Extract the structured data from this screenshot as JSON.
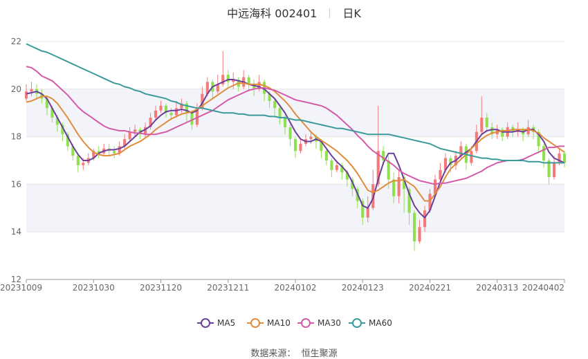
{
  "title": {
    "name": "中远海科 002401",
    "period": "日K"
  },
  "source": {
    "label": "数据来源：",
    "value": "恒生聚源"
  },
  "colors": {
    "up": "#f47a7a",
    "down": "#8fe04f",
    "band": "#f2f4fa",
    "grid": "#e6e6e6",
    "MA5": "#6a3d9a",
    "MA10": "#e08c3a",
    "MA30": "#d45aa8",
    "MA60": "#3a9a9a"
  },
  "chart_data": {
    "type": "candlestick",
    "ylim": [
      12,
      22
    ],
    "y_ticks": [
      12,
      14,
      16,
      18,
      20,
      22
    ],
    "x_tick_labels": [
      "20231009",
      "20231030",
      "20231120",
      "20231211",
      "20240102",
      "20240123",
      "20240221",
      "20240313",
      "20240402"
    ],
    "legend": [
      "MA5",
      "MA10",
      "MA30",
      "MA60"
    ],
    "legend_position": "bottom",
    "grid": true,
    "candles": [
      [
        19.6,
        19.9,
        20.2,
        19.5
      ],
      [
        19.9,
        20.0,
        20.3,
        19.7
      ],
      [
        20.0,
        19.8,
        20.2,
        19.6
      ],
      [
        19.8,
        19.6,
        20.0,
        19.4
      ],
      [
        19.6,
        19.2,
        19.7,
        18.9
      ],
      [
        19.2,
        18.8,
        19.3,
        18.6
      ],
      [
        18.8,
        18.5,
        18.9,
        18.2
      ],
      [
        18.5,
        18.1,
        18.6,
        17.8
      ],
      [
        18.1,
        17.6,
        18.2,
        17.4
      ],
      [
        17.6,
        17.2,
        17.7,
        17.0
      ],
      [
        17.2,
        16.8,
        17.3,
        16.5
      ],
      [
        16.8,
        16.9,
        17.1,
        16.6
      ],
      [
        16.9,
        17.1,
        17.3,
        16.8
      ],
      [
        17.1,
        17.4,
        17.5,
        17.0
      ],
      [
        17.4,
        17.3,
        17.6,
        17.1
      ],
      [
        17.3,
        17.5,
        17.7,
        17.2
      ],
      [
        17.5,
        17.4,
        17.7,
        17.2
      ],
      [
        17.4,
        17.3,
        17.6,
        17.1
      ],
      [
        17.3,
        17.6,
        17.8,
        17.2
      ],
      [
        17.6,
        17.9,
        18.1,
        17.5
      ],
      [
        17.9,
        18.2,
        18.4,
        17.8
      ],
      [
        18.2,
        18.3,
        18.5,
        18.0
      ],
      [
        18.3,
        18.1,
        18.4,
        17.9
      ],
      [
        18.1,
        18.4,
        18.6,
        18.0
      ],
      [
        18.4,
        18.8,
        19.0,
        18.3
      ],
      [
        18.8,
        19.1,
        19.3,
        18.7
      ],
      [
        19.1,
        19.3,
        19.5,
        19.0
      ],
      [
        19.3,
        19.0,
        19.4,
        18.8
      ],
      [
        19.0,
        18.9,
        19.2,
        18.7
      ],
      [
        18.9,
        19.2,
        19.5,
        18.8
      ],
      [
        19.2,
        19.4,
        19.6,
        19.0
      ],
      [
        19.4,
        19.0,
        19.5,
        18.6
      ],
      [
        19.0,
        18.5,
        19.1,
        18.3
      ],
      [
        18.5,
        19.2,
        19.4,
        18.4
      ],
      [
        19.2,
        19.8,
        20.1,
        19.1
      ],
      [
        19.8,
        20.3,
        20.5,
        19.7
      ],
      [
        20.3,
        19.9,
        20.4,
        19.6
      ],
      [
        19.9,
        20.2,
        20.6,
        19.8
      ],
      [
        20.2,
        20.6,
        21.6,
        20.1
      ],
      [
        20.6,
        20.3,
        20.8,
        20.1
      ],
      [
        20.3,
        20.4,
        20.7,
        20.0
      ],
      [
        20.4,
        20.1,
        20.5,
        19.9
      ],
      [
        20.1,
        20.5,
        20.8,
        20.0
      ],
      [
        20.5,
        20.2,
        20.6,
        19.9
      ],
      [
        20.2,
        20.0,
        20.4,
        19.7
      ],
      [
        20.0,
        20.3,
        20.6,
        19.9
      ],
      [
        20.3,
        19.8,
        20.4,
        19.5
      ],
      [
        19.8,
        19.5,
        19.9,
        19.2
      ],
      [
        19.5,
        19.2,
        19.6,
        18.9
      ],
      [
        19.2,
        18.8,
        19.3,
        18.5
      ],
      [
        18.8,
        18.4,
        18.9,
        18.1
      ],
      [
        18.4,
        17.9,
        18.5,
        17.6
      ],
      [
        17.9,
        17.4,
        18.0,
        17.1
      ],
      [
        17.4,
        17.7,
        17.9,
        17.3
      ],
      [
        17.7,
        17.9,
        18.1,
        17.6
      ],
      [
        17.9,
        18.0,
        18.2,
        17.7
      ],
      [
        18.0,
        17.8,
        18.1,
        17.5
      ],
      [
        17.8,
        17.4,
        17.9,
        17.1
      ],
      [
        17.4,
        17.0,
        17.5,
        16.8
      ],
      [
        17.0,
        16.6,
        17.1,
        16.3
      ],
      [
        16.6,
        16.8,
        17.0,
        16.5
      ],
      [
        16.8,
        16.5,
        16.9,
        16.2
      ],
      [
        16.5,
        16.2,
        16.6,
        15.9
      ],
      [
        16.2,
        15.8,
        16.3,
        15.5
      ],
      [
        15.8,
        15.3,
        15.9,
        15.0
      ],
      [
        15.3,
        14.6,
        15.4,
        14.3
      ],
      [
        14.6,
        15.0,
        15.5,
        14.4
      ],
      [
        15.0,
        16.0,
        16.6,
        14.9
      ],
      [
        16.0,
        17.4,
        19.3,
        15.9
      ],
      [
        17.4,
        17.0,
        17.6,
        16.8
      ],
      [
        17.0,
        16.2,
        17.2,
        15.8
      ],
      [
        16.2,
        15.5,
        16.5,
        15.2
      ],
      [
        15.5,
        16.3,
        16.6,
        15.2
      ],
      [
        16.3,
        15.8,
        16.4,
        14.8
      ],
      [
        15.8,
        14.8,
        15.9,
        14.3
      ],
      [
        14.8,
        13.6,
        14.9,
        13.2
      ],
      [
        13.6,
        14.2,
        14.5,
        13.5
      ],
      [
        14.2,
        14.9,
        15.1,
        14.0
      ],
      [
        14.9,
        15.6,
        15.8,
        14.8
      ],
      [
        15.6,
        16.2,
        16.4,
        15.5
      ],
      [
        16.2,
        16.6,
        16.9,
        16.1
      ],
      [
        16.6,
        17.1,
        17.3,
        16.5
      ],
      [
        17.1,
        16.8,
        17.2,
        16.5
      ],
      [
        16.8,
        17.2,
        17.4,
        16.6
      ],
      [
        17.2,
        17.6,
        17.8,
        17.1
      ],
      [
        17.6,
        16.9,
        17.7,
        16.6
      ],
      [
        16.9,
        17.4,
        17.6,
        16.8
      ],
      [
        17.4,
        18.2,
        18.5,
        17.3
      ],
      [
        18.2,
        18.8,
        19.7,
        18.1
      ],
      [
        18.8,
        18.4,
        19.0,
        18.2
      ],
      [
        18.4,
        18.1,
        18.6,
        17.9
      ],
      [
        18.1,
        18.3,
        18.5,
        17.9
      ],
      [
        18.3,
        18.0,
        18.4,
        17.8
      ],
      [
        18.0,
        18.4,
        18.6,
        17.9
      ],
      [
        18.4,
        18.2,
        18.5,
        18.0
      ],
      [
        18.2,
        18.3,
        18.6,
        18.0
      ],
      [
        18.3,
        18.1,
        18.4,
        17.8
      ],
      [
        18.1,
        18.4,
        18.7,
        18.0
      ],
      [
        18.4,
        18.2,
        18.5,
        17.9
      ],
      [
        18.2,
        17.6,
        18.3,
        17.3
      ],
      [
        17.6,
        17.0,
        17.7,
        16.7
      ],
      [
        17.0,
        16.3,
        17.1,
        16.0
      ],
      [
        16.3,
        16.9,
        17.2,
        16.2
      ],
      [
        16.9,
        17.3,
        17.5,
        16.8
      ],
      [
        17.3,
        16.9,
        17.4,
        16.7
      ]
    ],
    "series": [
      {
        "name": "MA5",
        "values": [
          19.8,
          19.85,
          19.9,
          19.8,
          19.6,
          19.2,
          18.8,
          18.4,
          18.0,
          17.6,
          17.25,
          17.0,
          17.0,
          17.1,
          17.3,
          17.4,
          17.45,
          17.45,
          17.5,
          17.6,
          17.8,
          18.0,
          18.2,
          18.3,
          18.45,
          18.7,
          18.9,
          19.05,
          19.1,
          19.1,
          19.15,
          19.1,
          19.0,
          19.1,
          19.4,
          19.8,
          20.1,
          20.2,
          20.3,
          20.4,
          20.4,
          20.35,
          20.3,
          20.2,
          20.15,
          20.1,
          20.0,
          19.8,
          19.6,
          19.3,
          19.0,
          18.6,
          18.2,
          17.9,
          17.8,
          17.8,
          17.9,
          17.8,
          17.5,
          17.2,
          16.95,
          16.75,
          16.5,
          16.1,
          15.6,
          15.1,
          15.0,
          15.4,
          16.2,
          16.9,
          17.3,
          17.3,
          16.8,
          16.2,
          15.6,
          15.1,
          14.8,
          14.6,
          14.9,
          15.5,
          16.1,
          16.6,
          16.9,
          17.0,
          17.2,
          17.35,
          17.5,
          17.8,
          18.1,
          18.25,
          18.3,
          18.3,
          18.2,
          18.2,
          18.2,
          18.25,
          18.2,
          18.3,
          18.3,
          18.1,
          17.8,
          17.35,
          17.1,
          17.0,
          16.9
        ]
      },
      {
        "name": "MA10",
        "values": [
          19.45,
          19.5,
          19.6,
          19.7,
          19.7,
          19.6,
          19.4,
          19.1,
          18.8,
          18.45,
          18.1,
          17.8,
          17.55,
          17.35,
          17.25,
          17.2,
          17.2,
          17.25,
          17.3,
          17.45,
          17.6,
          17.7,
          17.8,
          17.95,
          18.1,
          18.3,
          18.45,
          18.6,
          18.75,
          18.85,
          18.95,
          19.0,
          19.05,
          19.15,
          19.3,
          19.45,
          19.6,
          19.75,
          19.9,
          20.05,
          20.15,
          20.25,
          20.25,
          20.2,
          20.2,
          20.2,
          20.15,
          20.05,
          19.9,
          19.7,
          19.5,
          19.25,
          18.95,
          18.7,
          18.45,
          18.2,
          18.0,
          17.85,
          17.7,
          17.55,
          17.4,
          17.2,
          17.0,
          16.75,
          16.45,
          16.1,
          15.75,
          15.65,
          15.75,
          15.9,
          16.05,
          16.15,
          16.15,
          16.2,
          16.05,
          15.9,
          15.6,
          15.3,
          15.3,
          15.6,
          15.9,
          16.3,
          16.65,
          16.85,
          17.05,
          17.25,
          17.5,
          17.7,
          17.9,
          18.05,
          18.15,
          18.2,
          18.25,
          18.25,
          18.3,
          18.3,
          18.3,
          18.3,
          18.25,
          18.15,
          17.95,
          17.8,
          17.65,
          17.5,
          17.35
        ]
      },
      {
        "name": "MA30",
        "values": [
          20.95,
          20.9,
          20.75,
          20.55,
          20.45,
          20.35,
          20.15,
          19.95,
          19.75,
          19.5,
          19.25,
          19.05,
          18.9,
          18.75,
          18.6,
          18.45,
          18.35,
          18.3,
          18.25,
          18.25,
          18.2,
          18.15,
          18.15,
          18.1,
          18.1,
          18.1,
          18.15,
          18.2,
          18.3,
          18.4,
          18.5,
          18.6,
          18.7,
          18.8,
          18.9,
          19.0,
          19.1,
          19.25,
          19.4,
          19.55,
          19.65,
          19.75,
          19.85,
          19.95,
          20.0,
          20.05,
          20.05,
          20.0,
          19.95,
          19.85,
          19.75,
          19.65,
          19.55,
          19.5,
          19.45,
          19.4,
          19.35,
          19.3,
          19.2,
          19.05,
          18.9,
          18.7,
          18.5,
          18.3,
          18.05,
          17.85,
          17.6,
          17.4,
          17.25,
          17.1,
          16.95,
          16.8,
          16.6,
          16.45,
          16.35,
          16.25,
          16.15,
          16.1,
          16.05,
          16.0,
          16.05,
          16.05,
          16.1,
          16.15,
          16.2,
          16.25,
          16.35,
          16.45,
          16.55,
          16.7,
          16.8,
          16.9,
          16.95,
          17.0,
          17.0,
          17.0,
          17.05,
          17.15,
          17.25,
          17.35,
          17.45,
          17.55,
          17.55,
          17.6,
          17.6
        ]
      },
      {
        "name": "MA60",
        "values": [
          21.9,
          21.8,
          21.7,
          21.6,
          21.55,
          21.45,
          21.35,
          21.25,
          21.15,
          21.05,
          20.95,
          20.85,
          20.75,
          20.65,
          20.55,
          20.45,
          20.35,
          20.25,
          20.2,
          20.1,
          20.05,
          19.95,
          19.9,
          19.8,
          19.75,
          19.7,
          19.65,
          19.6,
          19.5,
          19.45,
          19.35,
          19.3,
          19.25,
          19.2,
          19.2,
          19.15,
          19.1,
          19.05,
          19.0,
          19.0,
          19.0,
          18.95,
          18.95,
          18.9,
          18.9,
          18.9,
          18.9,
          18.85,
          18.85,
          18.8,
          18.8,
          18.75,
          18.7,
          18.7,
          18.65,
          18.6,
          18.55,
          18.5,
          18.45,
          18.4,
          18.35,
          18.35,
          18.3,
          18.25,
          18.2,
          18.15,
          18.1,
          18.1,
          18.1,
          18.1,
          18.1,
          18.05,
          18.0,
          17.95,
          17.9,
          17.85,
          17.8,
          17.75,
          17.7,
          17.6,
          17.5,
          17.45,
          17.4,
          17.35,
          17.3,
          17.25,
          17.2,
          17.15,
          17.1,
          17.1,
          17.05,
          17.05,
          17.0,
          17.0,
          17.0,
          17.0,
          17.0,
          16.95,
          16.95,
          16.95,
          16.9,
          16.9,
          16.9,
          16.9,
          16.9
        ]
      }
    ]
  }
}
